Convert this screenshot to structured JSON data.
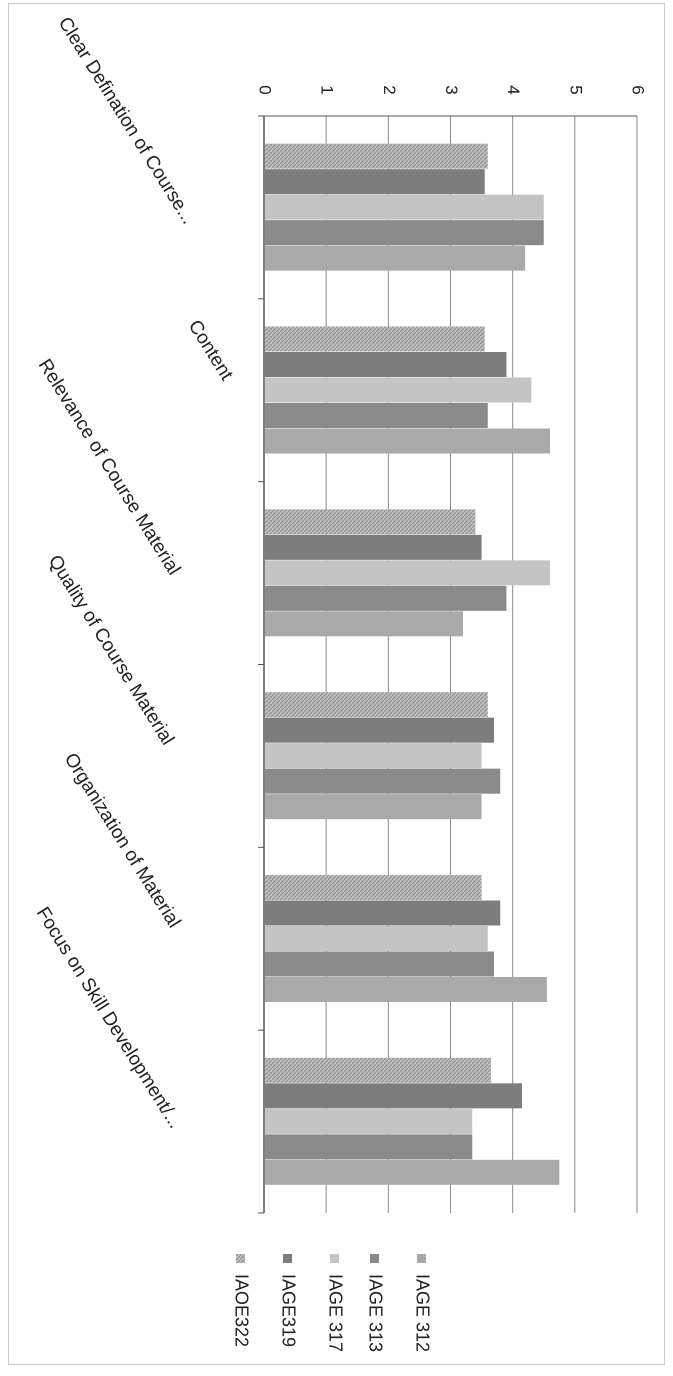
{
  "chart_data": {
    "type": "bar",
    "orientation": "vertical-rotated-90",
    "categories": [
      "Clear Defination of Course...",
      "Content",
      "Relevance of Course Material",
      "Quality of Course Material",
      "Organization of Material",
      "Focus on Skill Development/..."
    ],
    "series": [
      {
        "name": "IAOE322",
        "color": "#b4b4b4",
        "pattern": "hatch",
        "values": [
          3.6,
          3.55,
          3.4,
          3.6,
          3.5,
          3.65
        ]
      },
      {
        "name": "IAGE319",
        "color": "#7d7d7d",
        "values": [
          3.55,
          3.9,
          3.5,
          3.7,
          3.8,
          4.15
        ]
      },
      {
        "name": "IAGE 317",
        "color": "#c4c4c4",
        "values": [
          4.5,
          4.3,
          4.6,
          3.5,
          3.6,
          3.35
        ]
      },
      {
        "name": "IAGE 313",
        "color": "#8a8a8a",
        "values": [
          4.5,
          3.6,
          3.9,
          3.8,
          3.7,
          3.35
        ]
      },
      {
        "name": "IAGE 312",
        "color": "#a9a9a9",
        "values": [
          4.2,
          4.6,
          3.2,
          3.5,
          4.55,
          4.75
        ]
      }
    ],
    "y_ticks": [
      "0",
      "1",
      "2",
      "3",
      "4",
      "5",
      "6"
    ],
    "ylim": [
      0,
      6
    ],
    "grid": true,
    "legend": "right"
  }
}
